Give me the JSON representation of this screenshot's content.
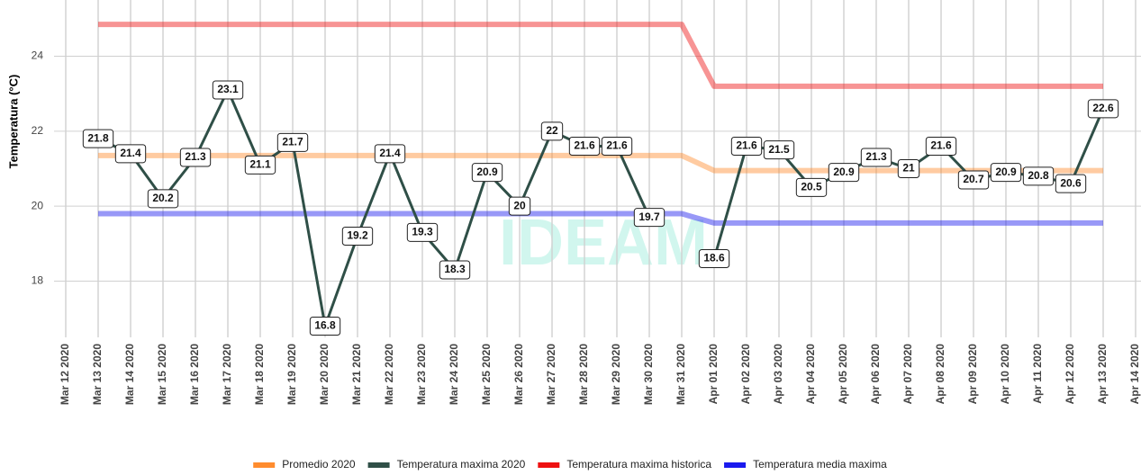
{
  "chart_data": {
    "type": "line",
    "y_label": "Temperatura (°C)",
    "watermark": "IDEAM",
    "categories": [
      "Mar 12 2020",
      "Mar 13 2020",
      "Mar 14 2020",
      "Mar 15 2020",
      "Mar 16 2020",
      "Mar 17 2020",
      "Mar 18 2020",
      "Mar 19 2020",
      "Mar 20 2020",
      "Mar 21 2020",
      "Mar 22 2020",
      "Mar 23 2020",
      "Mar 24 2020",
      "Mar 25 2020",
      "Mar 26 2020",
      "Mar 27 2020",
      "Mar 28 2020",
      "Mar 29 2020",
      "Mar 30 2020",
      "Mar 31 2020",
      "Apr 01 2020",
      "Apr 02 2020",
      "Apr 03 2020",
      "Apr 04 2020",
      "Apr 05 2020",
      "Apr 06 2020",
      "Apr 07 2020",
      "Apr 08 2020",
      "Apr 09 2020",
      "Apr 10 2020",
      "Apr 11 2020",
      "Apr 12 2020",
      "Apr 13 2020",
      "Apr 14 2020"
    ],
    "series": [
      {
        "name": "Promedio 2020",
        "color": "#ff8c2e",
        "values": [
          null,
          21.35,
          21.35,
          21.35,
          21.35,
          21.35,
          21.35,
          21.35,
          21.35,
          21.35,
          21.35,
          21.35,
          21.35,
          21.35,
          21.35,
          21.35,
          21.35,
          21.35,
          21.35,
          21.35,
          20.95,
          20.95,
          20.95,
          20.95,
          20.95,
          20.95,
          20.95,
          20.95,
          20.95,
          20.95,
          20.95,
          20.95,
          20.95,
          null
        ]
      },
      {
        "name": "Temperatura maxima 2020",
        "color": "#2f4f47",
        "labels": true,
        "values": [
          null,
          21.8,
          21.4,
          20.2,
          21.3,
          23.1,
          21.1,
          21.7,
          16.8,
          19.2,
          21.4,
          19.3,
          18.3,
          20.9,
          20,
          22,
          21.6,
          21.6,
          19.7,
          null,
          18.6,
          21.6,
          21.5,
          20.5,
          20.9,
          21.3,
          21,
          21.6,
          20.7,
          20.9,
          20.8,
          20.6,
          22.6,
          null
        ]
      },
      {
        "name": "Temperatura maxima historica",
        "color": "#ee1111",
        "values": [
          null,
          24.85,
          24.85,
          24.85,
          24.85,
          24.85,
          24.85,
          24.85,
          24.85,
          24.85,
          24.85,
          24.85,
          24.85,
          24.85,
          24.85,
          24.85,
          24.85,
          24.85,
          24.85,
          24.85,
          23.2,
          23.2,
          23.2,
          23.2,
          23.2,
          23.2,
          23.2,
          23.2,
          23.2,
          23.2,
          23.2,
          23.2,
          23.2,
          null
        ]
      },
      {
        "name": "Temperatura media maxima",
        "color": "#1a1aee",
        "values": [
          null,
          19.8,
          19.8,
          19.8,
          19.8,
          19.8,
          19.8,
          19.8,
          19.8,
          19.8,
          19.8,
          19.8,
          19.8,
          19.8,
          19.8,
          19.8,
          19.8,
          19.8,
          19.8,
          19.8,
          19.55,
          19.55,
          19.55,
          19.55,
          19.55,
          19.55,
          19.55,
          19.55,
          19.55,
          19.55,
          19.55,
          19.55,
          19.55,
          null
        ]
      }
    ],
    "ylim": [
      16.5,
      25.5
    ],
    "yticks": [
      18,
      20,
      22,
      24
    ],
    "grid": true
  }
}
